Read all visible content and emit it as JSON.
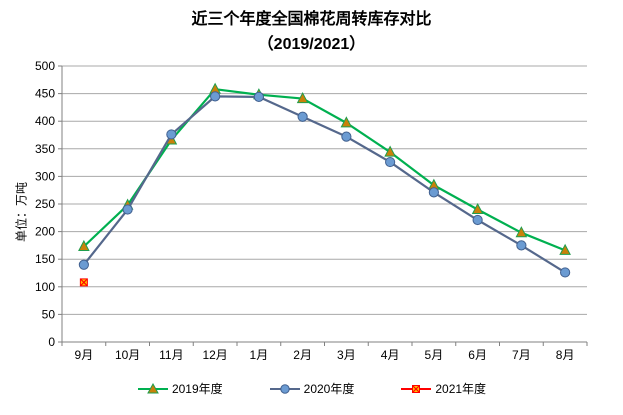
{
  "title": {
    "line1": "近三个年度全国棉花周转库存对比",
    "line2": "（2019/2021）"
  },
  "y_axis_label": "单位：万吨",
  "chart_data": {
    "type": "line",
    "title": "近三个年度全国棉花周转库存对比（2019/2021）",
    "xlabel": "",
    "ylabel": "单位：万吨",
    "ylim": [
      0,
      500
    ],
    "y_tick_step": 50,
    "grid": "horizontal",
    "legend_position": "bottom",
    "categories": [
      "9月",
      "10月",
      "11月",
      "12月",
      "1月",
      "2月",
      "3月",
      "4月",
      "5月",
      "6月",
      "7月",
      "8月"
    ],
    "series": [
      {
        "name": "2019年度",
        "marker": "triangle",
        "line_color": "#00B050",
        "marker_fill": "#C9810A",
        "marker_stroke": "#1F9E4D",
        "values": [
          173,
          248,
          366,
          458,
          448,
          441,
          397,
          344,
          284,
          240,
          198,
          166
        ]
      },
      {
        "name": "2020年度",
        "marker": "circle",
        "line_color": "#55688C",
        "marker_fill": "#6B9BD2",
        "marker_stroke": "#41608F",
        "values": [
          140,
          240,
          376,
          445,
          444,
          408,
          372,
          326,
          271,
          221,
          175,
          126
        ]
      },
      {
        "name": "2021年度",
        "marker": "x-square",
        "line_color": "#FF0000",
        "marker_fill": "#FFC000",
        "marker_stroke": "#FF0000",
        "values": [
          108,
          null,
          null,
          null,
          null,
          null,
          null,
          null,
          null,
          null,
          null,
          null
        ]
      }
    ],
    "colors": {
      "gridline": "#A8A8A8",
      "axis": "#808080",
      "background": "#FFFFFF"
    }
  }
}
